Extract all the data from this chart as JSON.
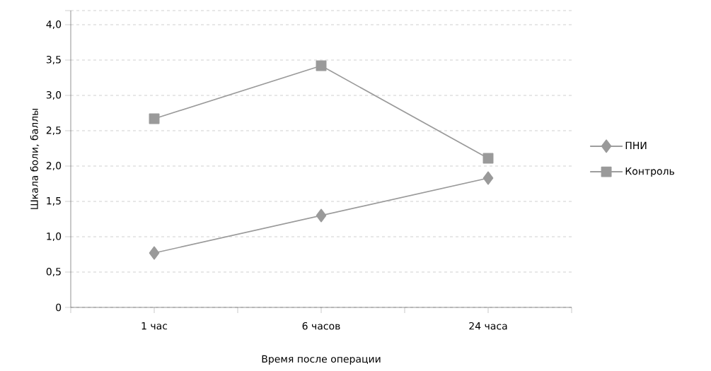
{
  "chart_data": {
    "type": "line",
    "xlabel": "Время после операции",
    "ylabel": "Шкала боли, баллы",
    "categories": [
      "1 час",
      "6 часов",
      "24 часа"
    ],
    "series": [
      {
        "name": "ПНИ",
        "color": "#9a9a9a",
        "marker": "diamond",
        "values": [
          0.77,
          1.3,
          1.83
        ]
      },
      {
        "name": "Контроль",
        "color": "#9a9a9a",
        "marker": "square",
        "values": [
          2.67,
          3.42,
          2.11
        ]
      }
    ],
    "ylim": [
      0,
      4.2
    ],
    "yticks": [
      0,
      {
        "value": 0.5,
        "label": "0,5"
      },
      {
        "value": 1,
        "label": "1,0"
      },
      {
        "value": 1.5,
        "label": "1,5"
      },
      {
        "value": 2,
        "label": "2,0"
      },
      {
        "value": 2.5,
        "label": "2,5"
      },
      {
        "value": 3,
        "label": "3,0"
      },
      {
        "value": 3.5,
        "label": "3,5"
      },
      {
        "value": 4,
        "label": "4,0"
      },
      {
        "value": 4.2,
        "label": null
      }
    ],
    "grid": "y",
    "legend": "right",
    "line_style": "solid"
  }
}
